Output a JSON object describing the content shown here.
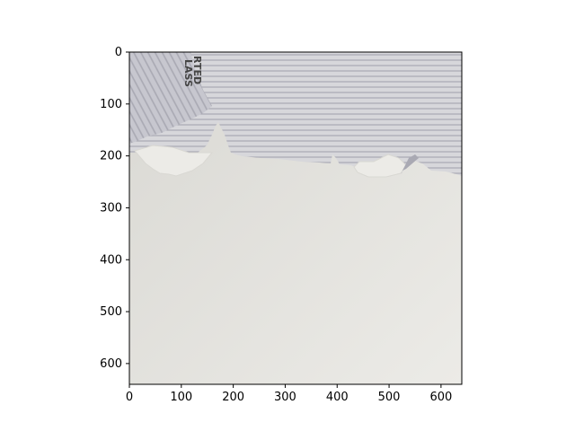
{
  "chart_data": {
    "type": "image",
    "title": "",
    "xlabel": "",
    "ylabel": "",
    "xlim": [
      0,
      640
    ],
    "ylim": [
      640,
      0
    ],
    "y_axis_inverted": true,
    "grid": false,
    "xticks": [
      0,
      100,
      200,
      300,
      400,
      500,
      600
    ],
    "yticks": [
      0,
      100,
      200,
      300,
      400,
      500,
      600
    ],
    "image": {
      "description": "Photograph of a torn envelope: striped gray inner lining at top, torn edge across the middle, plain off-white paper below",
      "partial_printed_text": [
        "RTED",
        "LASS"
      ],
      "colors": {
        "paper": "#ecebe7",
        "paper_shadow": "#d9d8d3",
        "torn_flap": "#d7d7db",
        "stripe": "#a9a9b3",
        "lining": "#c7c7cf",
        "ink": "#444444"
      }
    }
  }
}
